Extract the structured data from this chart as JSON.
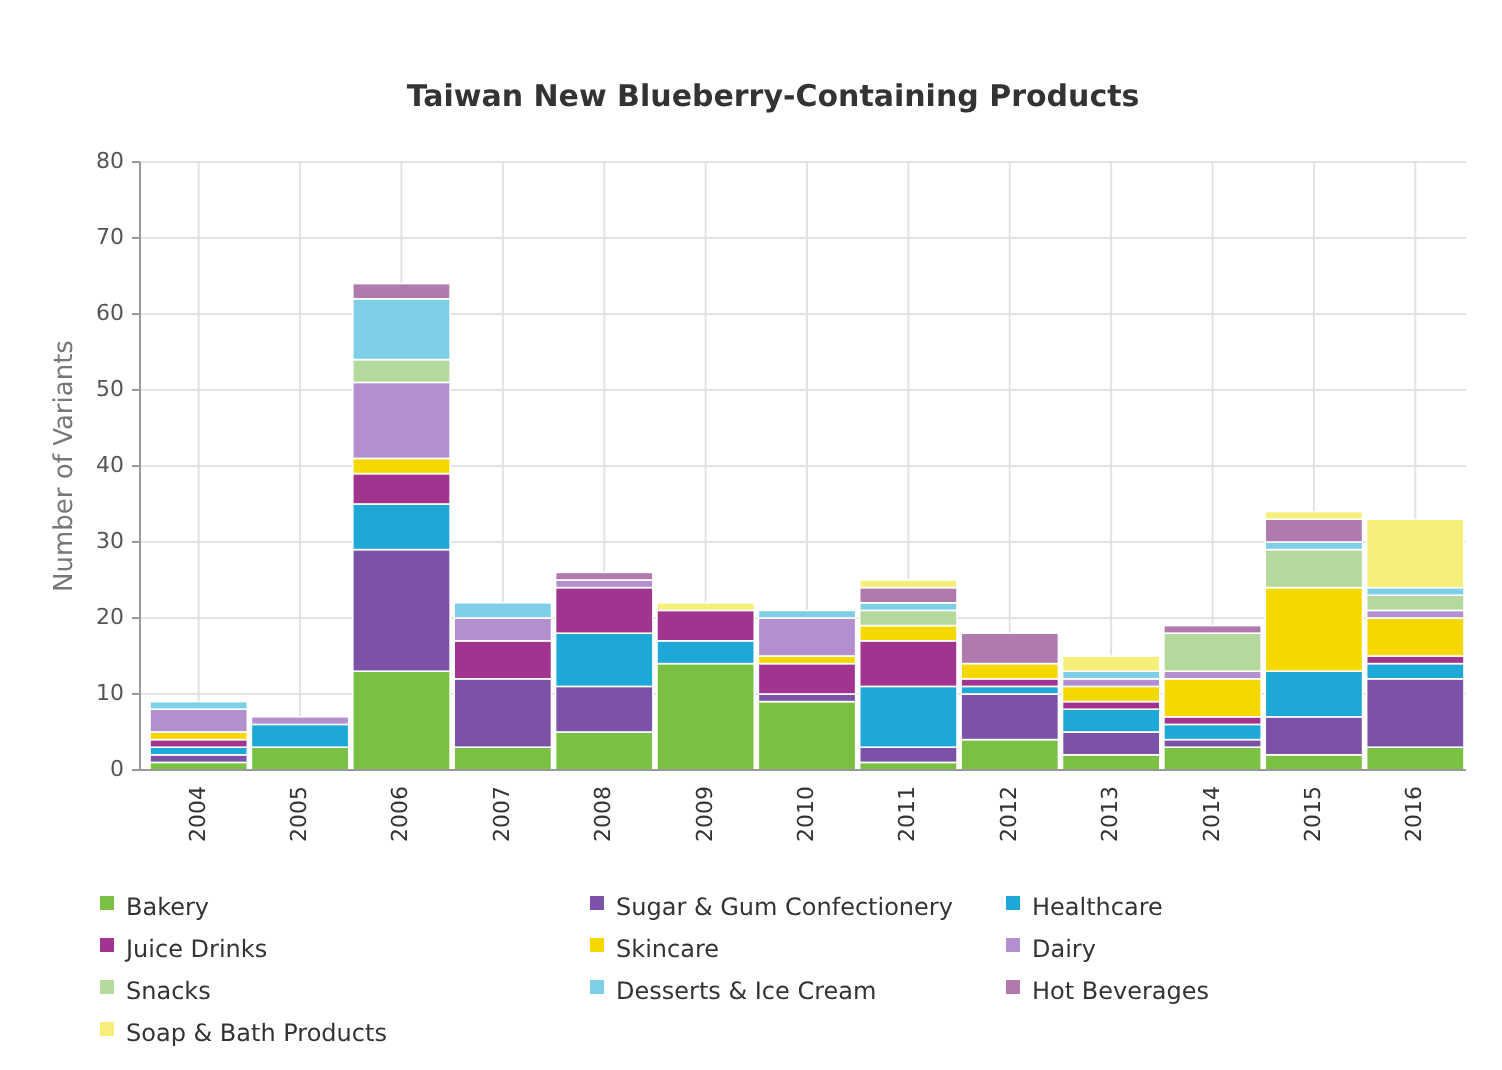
{
  "chart_data": {
    "type": "bar",
    "title": "Taiwan New Blueberry-Containing Products",
    "ylabel": "Number of Variants",
    "stacked": true,
    "grid": true,
    "legend": "bottom",
    "categories": [
      "2004",
      "2005",
      "2006",
      "2007",
      "2008",
      "2009",
      "2010",
      "2011",
      "2012",
      "2013",
      "2014",
      "2015",
      "2016"
    ],
    "ylim": [
      0,
      80
    ],
    "yticks": [
      0,
      10,
      20,
      30,
      40,
      50,
      60,
      70,
      80
    ],
    "series": [
      {
        "name": "Bakery",
        "color": "#7ac143",
        "values": [
          1,
          3,
          13,
          3,
          5,
          14,
          9,
          1,
          4,
          2,
          3,
          2,
          3
        ]
      },
      {
        "name": "Sugar & Gum Confectionery",
        "color": "#7b52a8",
        "values": [
          1,
          0,
          16,
          9,
          6,
          0,
          1,
          2,
          6,
          3,
          1,
          5,
          9
        ]
      },
      {
        "name": "Healthcare",
        "color": "#1ea8d8",
        "values": [
          1,
          3,
          6,
          0,
          7,
          3,
          0,
          8,
          1,
          3,
          2,
          6,
          2
        ]
      },
      {
        "name": "Juice Drinks",
        "color": "#a0348f",
        "values": [
          1,
          0,
          4,
          5,
          6,
          4,
          4,
          6,
          1,
          1,
          1,
          0,
          1
        ]
      },
      {
        "name": "Skincare",
        "color": "#f5d800",
        "values": [
          1,
          0,
          2,
          0,
          0,
          0,
          1,
          2,
          2,
          2,
          5,
          11,
          5
        ]
      },
      {
        "name": "Dairy",
        "color": "#b48fd0",
        "values": [
          3,
          1,
          10,
          3,
          1,
          0,
          5,
          0,
          0,
          1,
          1,
          0,
          1
        ]
      },
      {
        "name": "Snacks",
        "color": "#b5d99c",
        "values": [
          0,
          0,
          3,
          0,
          0,
          0,
          0,
          2,
          0,
          0,
          5,
          5,
          2
        ]
      },
      {
        "name": "Desserts & Ice Cream",
        "color": "#7dcfe8",
        "values": [
          1,
          0,
          8,
          2,
          0,
          0,
          1,
          1,
          0,
          1,
          0,
          1,
          1
        ]
      },
      {
        "name": "Hot Beverages",
        "color": "#b07aaf",
        "values": [
          0,
          0,
          2,
          0,
          1,
          0,
          0,
          2,
          4,
          0,
          1,
          3,
          0
        ]
      },
      {
        "name": "Soap & Bath Products",
        "color": "#f5ef7a",
        "values": [
          0,
          0,
          0,
          0,
          0,
          1,
          0,
          1,
          0,
          2,
          0,
          1,
          9
        ]
      }
    ]
  }
}
